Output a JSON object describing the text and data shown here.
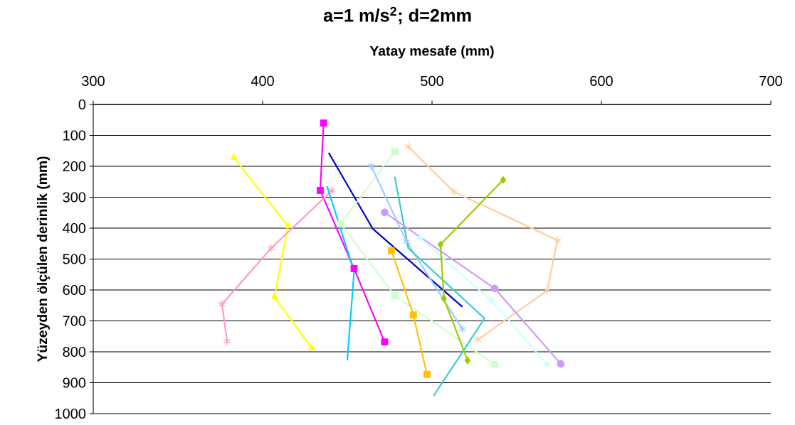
{
  "chart_data": {
    "type": "line",
    "title": "a=1 m/s$^{2}$; d=2mm",
    "xlabel": "Yatay mesafe (mm)",
    "ylabel": "Yüzeyden ölçülen derinlik (mm)",
    "xlim": [
      300,
      700
    ],
    "xticks": [
      300,
      400,
      500,
      600,
      700
    ],
    "ylim": [
      1000,
      0
    ],
    "yticks": [
      0,
      100,
      200,
      300,
      400,
      500,
      600,
      700,
      800,
      900,
      1000
    ],
    "grid": "y",
    "series": [
      {
        "color": "#ff00ff",
        "marker": "square",
        "x": [
          436,
          434,
          454,
          472
        ],
        "values": [
          60,
          278,
          531,
          768
        ]
      },
      {
        "color": "#ffff00",
        "marker": "triangle",
        "x": [
          383,
          415,
          407,
          429
        ],
        "values": [
          172,
          393,
          623,
          788
        ]
      },
      {
        "color": "#ff99cc",
        "marker": "cross",
        "x": [
          441,
          405,
          376,
          379
        ],
        "values": [
          278,
          465,
          646,
          766
        ]
      },
      {
        "color": "#00ccff",
        "marker": "none",
        "x": [
          438,
          454,
          450
        ],
        "values": [
          264,
          540,
          828
        ]
      },
      {
        "color": "#0000cc",
        "marker": "none",
        "x": [
          439,
          465,
          518
        ],
        "values": [
          156,
          402,
          655
        ]
      },
      {
        "color": "#ccffcc",
        "marker": "square",
        "x": [
          478,
          446,
          478,
          537
        ],
        "values": [
          152,
          386,
          618,
          841
        ]
      },
      {
        "color": "#99ccff",
        "marker": "cross",
        "x": [
          464,
          485,
          518
        ],
        "values": [
          198,
          444,
          727
        ]
      },
      {
        "color": "#33cccc",
        "marker": "none",
        "x": [
          478,
          486,
          531,
          501
        ],
        "values": [
          234,
          465,
          692,
          942
        ]
      },
      {
        "color": "#ffc000",
        "marker": "square",
        "x": [
          476,
          489,
          497
        ],
        "values": [
          473,
          681,
          873
        ]
      },
      {
        "color": "#ffcc99",
        "marker": "cross",
        "x": [
          486,
          513,
          574,
          568,
          527
        ],
        "values": [
          136,
          283,
          439,
          602,
          761
        ]
      },
      {
        "color": "#cc99ff",
        "marker": "circle",
        "x": [
          472,
          537,
          576
        ],
        "values": [
          349,
          595,
          839
        ]
      },
      {
        "color": "#ccffff",
        "marker": "diamond",
        "x": [
          493,
          535,
          568
        ],
        "values": [
          432,
          634,
          841
        ]
      },
      {
        "color": "#99cc00",
        "marker": "diamond",
        "x": [
          542,
          505,
          507,
          521
        ],
        "values": [
          244,
          453,
          628,
          828
        ]
      }
    ]
  }
}
